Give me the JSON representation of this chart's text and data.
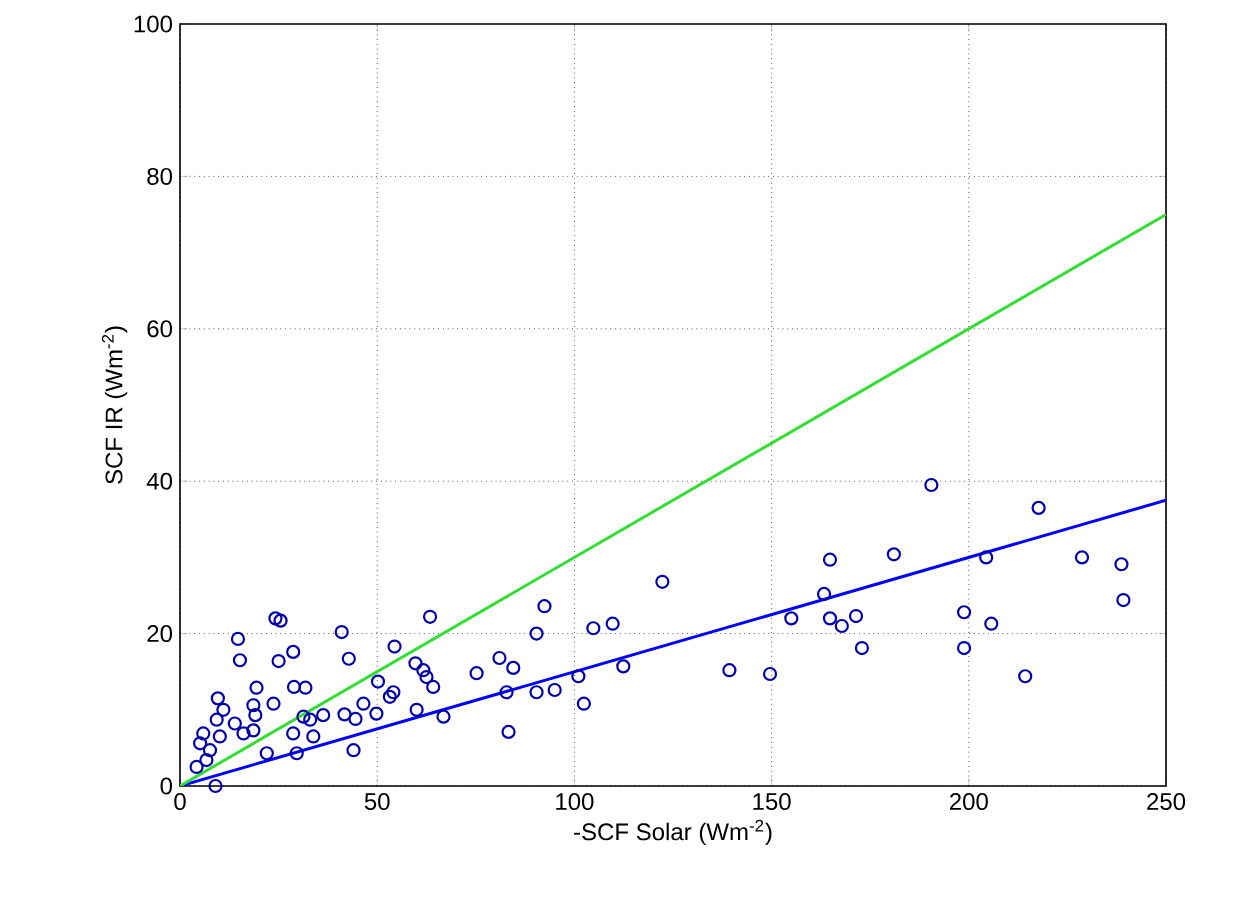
{
  "chart_data": {
    "type": "scatter",
    "xlabel": "-SCF Solar (Wm$^{-2}$)",
    "ylabel": "SCF IR (Wm$^{-2}$)",
    "xlim": [
      0,
      250
    ],
    "ylim": [
      0,
      100
    ],
    "xticks": [
      0,
      50,
      100,
      150,
      200,
      250
    ],
    "yticks": [
      0,
      20,
      40,
      60,
      80,
      100
    ],
    "grid": true,
    "marker": "circle",
    "series": [
      {
        "color": "#0000aa",
        "x": [
          81,
          84.5,
          82.8,
          83.3,
          90.4,
          92.4,
          90.4,
          95,
          101,
          102.4,
          104.8,
          109.7,
          112.4,
          122.3,
          139.3,
          149.6,
          155,
          163.3,
          164.8,
          164.8,
          167.8,
          171.4,
          172.9,
          181,
          190.5,
          198.8,
          198.8,
          204.4,
          205.7,
          214.3,
          217.7,
          228.7,
          238.7,
          239.2,
          9,
          24.2,
          25.5,
          14.7,
          15.2,
          41,
          42.8,
          63.4,
          54.4,
          25,
          28.7,
          28.9,
          31.8,
          19.4,
          9.6,
          23.7,
          18.6,
          11,
          19.1,
          13.9,
          9.3,
          5.9,
          5.1,
          7.6,
          10.1,
          16.1,
          18.6,
          4.2,
          6.7,
          22,
          28.7,
          29.6,
          33,
          31.3,
          33.8,
          36.3,
          44,
          41.7,
          44.5,
          46.5,
          49.8,
          50.2,
          53.2,
          54.1,
          60,
          59.7,
          61.7,
          62.5,
          64.2,
          66.8,
          75.2
        ],
        "values": [
          16.8,
          15.5,
          12.3,
          7.1,
          20,
          23.6,
          12.3,
          12.6,
          14.4,
          10.8,
          20.7,
          21.3,
          15.7,
          26.8,
          15.2,
          14.7,
          22,
          25.2,
          29.7,
          22,
          21,
          22.3,
          18.1,
          30.4,
          39.5,
          22.8,
          18.1,
          30,
          21.3,
          14.4,
          36.5,
          30,
          29.1,
          24.4,
          0,
          22,
          21.7,
          19.3,
          16.5,
          20.2,
          16.7,
          22.2,
          18.3,
          16.4,
          17.6,
          13,
          12.9,
          12.9,
          11.5,
          10.8,
          10.6,
          10,
          9.3,
          8.2,
          8.7,
          6.9,
          5.6,
          4.7,
          6.5,
          6.9,
          7.3,
          2.5,
          3.4,
          4.3,
          6.9,
          4.3,
          8.7,
          9.1,
          6.5,
          9.3,
          4.7,
          9.4,
          8.8,
          10.8,
          9.5,
          13.7,
          11.7,
          12.3,
          10,
          16.1,
          15.2,
          14.3,
          13,
          9.1,
          14.8
        ]
      },
      {
        "type": "line",
        "color": "#0000ff",
        "marker": "none",
        "x": [
          0,
          250
        ],
        "values": [
          0,
          37.5
        ]
      },
      {
        "type": "line",
        "color": "#33dd33",
        "marker": "none",
        "x": [
          0,
          250
        ],
        "values": [
          0,
          75
        ]
      }
    ]
  }
}
